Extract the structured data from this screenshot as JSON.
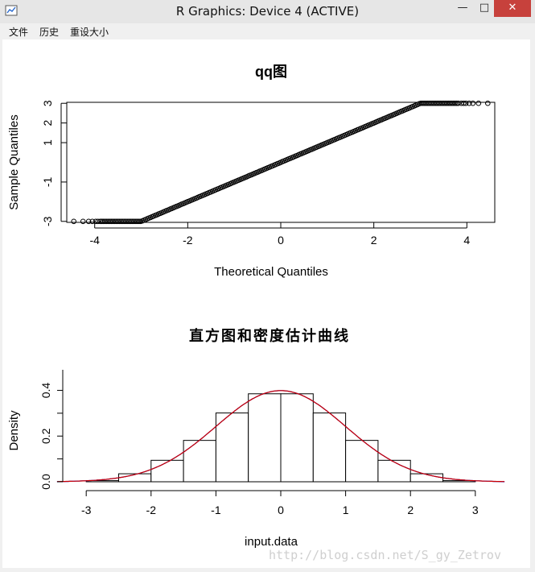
{
  "window": {
    "title": "R Graphics: Device 4 (ACTIVE)",
    "minimize_glyph": "—",
    "maximize_glyph": "□",
    "close_glyph": "✕"
  },
  "menu": {
    "items": [
      "文件",
      "历史",
      "重设大小"
    ]
  },
  "watermark": "http://blog.csdn.net/S_gy_Zetrov",
  "chart_data": [
    {
      "type": "scatter",
      "title": "qq图",
      "xlabel": "Theoretical Quantiles",
      "ylabel": "Sample Quantiles",
      "xlim": [
        -4.6,
        4.6
      ],
      "ylim": [
        -3.05,
        3.05
      ],
      "xticks": [
        -4,
        -2,
        0,
        2,
        4
      ],
      "yticks": [
        -3,
        -1,
        1,
        2,
        3
      ],
      "clip_value": 3,
      "tail_points_x": [
        -4.45,
        -4.25,
        -4.13,
        -4.05,
        -3.98,
        -3.93,
        -3.88,
        3.88,
        3.93,
        3.98,
        4.05,
        4.13,
        4.25,
        4.45
      ],
      "dense_range": [
        -3.85,
        3.85
      ],
      "marker": "open-circle"
    },
    {
      "type": "bar",
      "title": "直方图和密度估计曲线",
      "xlabel": "input.data",
      "ylabel": "Density",
      "bin_edges": [
        -3,
        -2.5,
        -2,
        -1.5,
        -1,
        -0.5,
        0,
        0.5,
        1,
        1.5,
        2,
        2.5,
        3
      ],
      "values": [
        0.005,
        0.035,
        0.094,
        0.181,
        0.301,
        0.385,
        0.385,
        0.301,
        0.181,
        0.094,
        0.035,
        0.005
      ],
      "xlim": [
        -3.3,
        3.3
      ],
      "ylim": [
        0,
        0.49
      ],
      "xticks": [
        -3,
        -2,
        -1,
        0,
        1,
        2,
        3
      ],
      "yticks": [
        0.0,
        0.2,
        0.4
      ],
      "curves": [
        {
          "kind": "normal-density",
          "color": "#cc0000"
        },
        {
          "kind": "kernel-density",
          "color": "#0000cc"
        }
      ]
    }
  ]
}
